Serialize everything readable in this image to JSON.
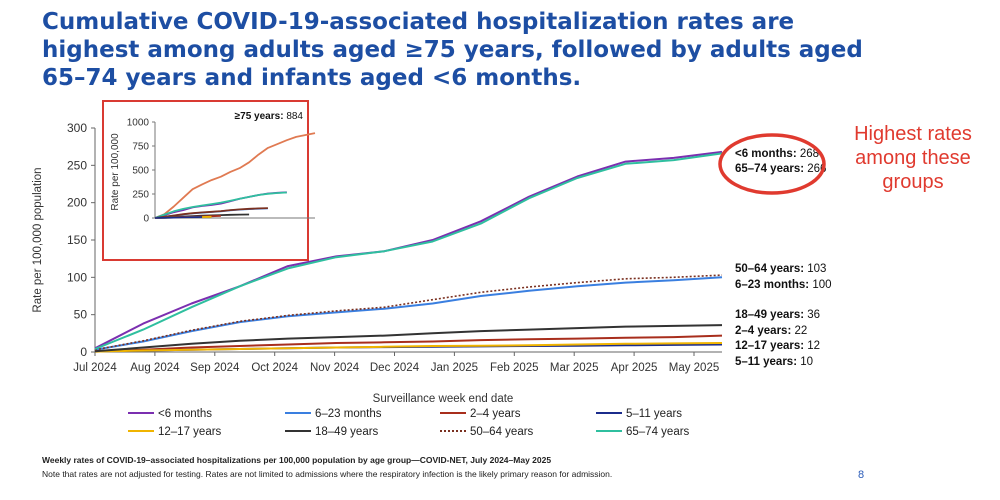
{
  "slide": {
    "title": "Cumulative COVID-19-associated hospitalization rates are highest among adults aged ≥75 years, followed by adults aged 65–74 years and infants aged <6 months.",
    "annotation": "Highest rates among these groups",
    "footnote_title": "Weekly rates of COVID-19–associated hospitalizations per 100,000 population by age group—COVID-NET, July 2024–May 2025",
    "footnote_note": "Note that rates are not adjusted for testing. Rates are not limited to admissions where the respiratory infection is the likely primary reason for admission.",
    "page_number": "8"
  },
  "colors": {
    "title": "#1d4ea3",
    "annotation": "#e03a2f",
    "inset_border": "#d93a32"
  },
  "chart_data": [
    {
      "type": "line",
      "xlabel": "Surveillance week end date",
      "ylabel": "Rate per 100,000 population",
      "ylim": [
        0,
        300
      ],
      "yticks": [
        0,
        50,
        100,
        150,
        200,
        250,
        300
      ],
      "x_ticks": [
        "Jul 2024",
        "Aug 2024",
        "Sep 2024",
        "Oct 2024",
        "Nov 2024",
        "Dec 2024",
        "Jan 2025",
        "Feb 2025",
        "Mar 2025",
        "Apr 2025",
        "May 2025"
      ],
      "grid": false,
      "legend_position": "bottom",
      "series": [
        {
          "name": "<6 months",
          "color": "#7b2fb0",
          "dash": false,
          "end_label": "<6 months:",
          "end_value": "268",
          "values": [
            5,
            38,
            65,
            88,
            115,
            128,
            135,
            150,
            175,
            208,
            235,
            255,
            260,
            268
          ]
        },
        {
          "name": "6–23 months",
          "color": "#3a7fe0",
          "dash": false,
          "end_label": "6–23 months:",
          "end_value": "100",
          "values": [
            3,
            14,
            28,
            40,
            48,
            53,
            58,
            65,
            75,
            82,
            88,
            93,
            96,
            100
          ]
        },
        {
          "name": "2–4 years",
          "color": "#a82e1c",
          "dash": false,
          "end_label": "2–4 years:",
          "end_value": "22",
          "values": [
            1,
            3,
            6,
            8,
            10,
            12,
            13,
            14,
            16,
            17,
            18,
            19,
            20,
            22
          ]
        },
        {
          "name": "5–11 years",
          "color": "#1b2c8c",
          "dash": false,
          "end_label": "5–11 years:",
          "end_value": "10",
          "values": [
            0.5,
            2,
            3,
            4,
            5,
            6,
            6.5,
            7,
            7.5,
            8,
            8.5,
            9,
            9.5,
            10
          ]
        },
        {
          "name": "12–17 years",
          "color": "#f0b400",
          "dash": false,
          "end_label": "12–17 years:",
          "end_value": "12",
          "values": [
            0.5,
            2,
            3,
            4,
            5,
            6,
            7,
            8,
            8.5,
            9,
            10,
            11,
            11.5,
            12
          ]
        },
        {
          "name": "18–49 years",
          "color": "#333333",
          "dash": false,
          "end_label": "18–49 years:",
          "end_value": "36",
          "values": [
            1,
            6,
            11,
            15,
            18,
            20,
            22,
            25,
            28,
            30,
            32,
            34,
            35,
            36
          ]
        },
        {
          "name": "50–64 years",
          "color": "#7a3020",
          "dash": true,
          "end_label": "50–64 years:",
          "end_value": "103",
          "values": [
            3,
            15,
            29,
            41,
            49,
            55,
            60,
            70,
            80,
            87,
            93,
            98,
            100,
            103
          ]
        },
        {
          "name": "65–74 years",
          "color": "#2fbf9f",
          "dash": false,
          "end_label": "65–74 years:",
          "end_value": "266",
          "values": [
            4,
            30,
            60,
            88,
            112,
            127,
            135,
            148,
            172,
            206,
            233,
            252,
            257,
            266
          ]
        }
      ]
    },
    {
      "type": "line",
      "name": "inset",
      "ylabel": "Rate per 100,000",
      "ylim": [
        0,
        1000
      ],
      "yticks": [
        0,
        250,
        500,
        750,
        1000
      ],
      "series_label": "≥75 years:",
      "series_value": "884",
      "series": [
        {
          "name": "≥75 years",
          "color": "#e07a52",
          "values": [
            0,
            40,
            120,
            210,
            300,
            350,
            395,
            430,
            480,
            520,
            580,
            660,
            730,
            770,
            810,
            845,
            865,
            884
          ]
        },
        {
          "name": "<6 months",
          "color": "#7b2fb0",
          "values": [
            0,
            30,
            60,
            82,
            110,
            125,
            135,
            150,
            175,
            200,
            220,
            240,
            255,
            262,
            268
          ]
        },
        {
          "name": "65–74 years",
          "color": "#2fbf9f",
          "values": [
            0,
            35,
            70,
            95,
            115,
            130,
            145,
            160,
            180,
            200,
            220,
            240,
            252,
            260,
            266
          ]
        },
        {
          "name": "6–23 months",
          "color": "#3a7fe0",
          "values": [
            0,
            12,
            25,
            38,
            48,
            55,
            62,
            70,
            80,
            88,
            93,
            97,
            100
          ]
        },
        {
          "name": "50–64 years",
          "color": "#7a3020",
          "values": [
            0,
            13,
            26,
            40,
            50,
            58,
            65,
            72,
            82,
            90,
            96,
            100,
            103
          ]
        },
        {
          "name": "18–49 years",
          "color": "#333333",
          "values": [
            0,
            6,
            12,
            16,
            20,
            24,
            27,
            30,
            33,
            35,
            36
          ]
        },
        {
          "name": "2–4 years",
          "color": "#a82e1c",
          "values": [
            0,
            3,
            7,
            10,
            13,
            16,
            19,
            22
          ]
        },
        {
          "name": "12–17 years",
          "color": "#f0b400",
          "values": [
            0,
            2,
            4,
            6,
            8,
            10,
            12
          ]
        },
        {
          "name": "5–11 years",
          "color": "#1b2c8c",
          "values": [
            0,
            2,
            4,
            6,
            8,
            10
          ]
        }
      ]
    }
  ]
}
